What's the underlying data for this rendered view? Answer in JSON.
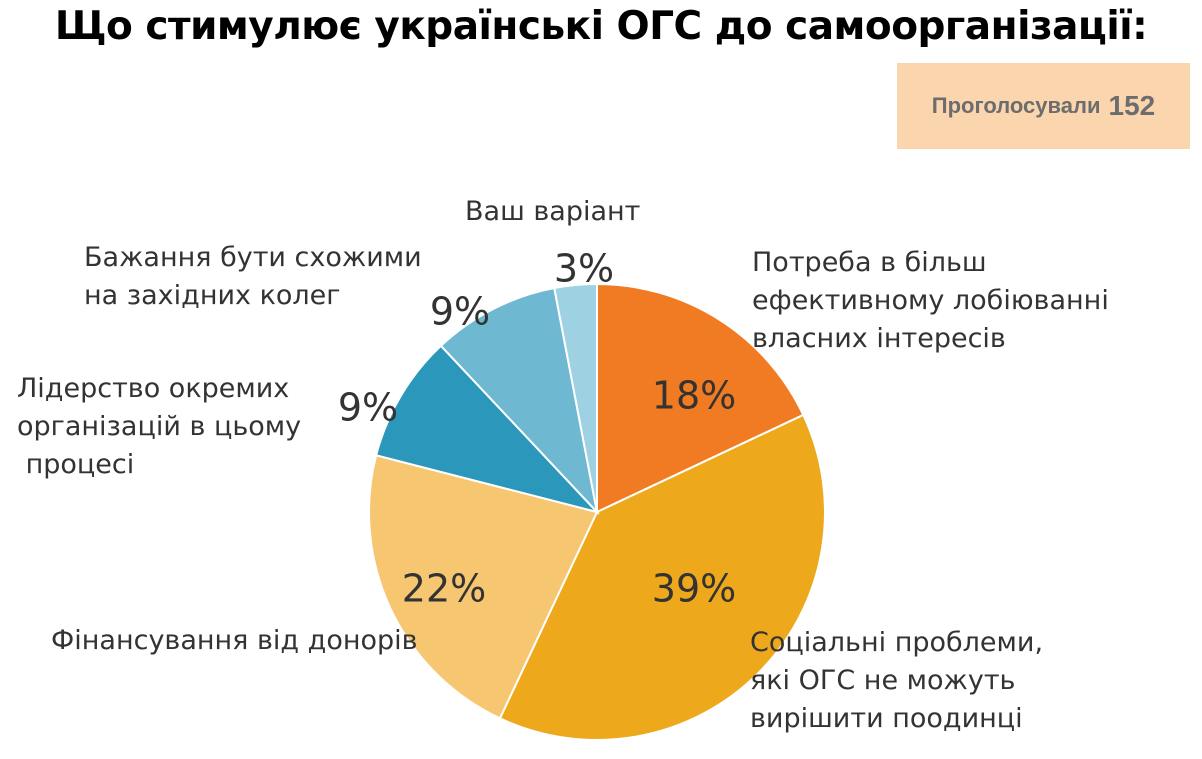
{
  "title": "Що стимулює українські ОГС до самоорганізації:",
  "votes": {
    "label": "Проголосували",
    "count": "152"
  },
  "chart_data": {
    "type": "pie",
    "title": "Що стимулює українські ОГС до самоорганізації:",
    "slices": [
      {
        "label": "Потреба в більш\nефективному лобіюванні\nвласних інтересів",
        "value": 18,
        "value_label": "18%",
        "color": "#f07b22"
      },
      {
        "label": "Соціальні проблеми,\nякі ОГС не можуть\nвирішити поодинці",
        "value": 39,
        "value_label": "39%",
        "color": "#eea81c"
      },
      {
        "label": "Фінансування від донорів",
        "value": 22,
        "value_label": "22%",
        "color": "#f6c670"
      },
      {
        "label": "Лідерство окремих\nорганізацій в цьому\n процесі",
        "value": 9,
        "value_label": "9%",
        "color": "#2b98bb"
      },
      {
        "label": "Бажання бути схожими\nна західних колег",
        "value": 9,
        "value_label": "9%",
        "color": "#6fb8d2"
      },
      {
        "label": "Ваш варіант",
        "value": 3,
        "value_label": "3%",
        "color": "#9ed1e2"
      }
    ],
    "legend": "labels beside slices"
  }
}
